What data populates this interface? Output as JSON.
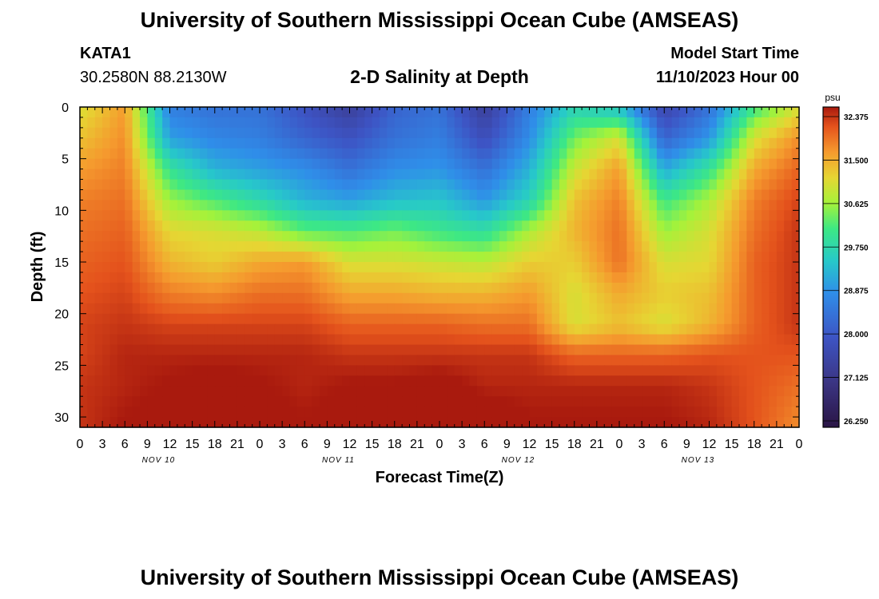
{
  "header": {
    "title": "University of Southern Mississippi Ocean Cube (AMSEAS)",
    "station_name": "KATA1",
    "station_coords": "30.2580N  88.2130W",
    "plot_title": "2-D Salinity at Depth",
    "model_label": "Model Start Time",
    "model_time": "11/10/2023 Hour 00"
  },
  "footer": {
    "title": "University of Southern Mississippi Ocean Cube (AMSEAS)"
  },
  "chart_data": {
    "type": "heatmap",
    "title": "2-D Salinity at Depth",
    "xlabel": "Forecast Time(Z)",
    "ylabel": "Depth (ft)",
    "xlim": [
      0,
      96
    ],
    "ylim": [
      0,
      31
    ],
    "y_ticks": [
      0,
      5,
      10,
      15,
      20,
      25,
      30
    ],
    "x_tick_labels": [
      "0",
      "3",
      "6",
      "9",
      "12",
      "15",
      "18",
      "21",
      "0",
      "3",
      "6",
      "9",
      "12",
      "15",
      "18",
      "21",
      "0",
      "3",
      "6",
      "9",
      "12",
      "15",
      "18",
      "21",
      "0",
      "3",
      "6",
      "9",
      "12",
      "15",
      "18",
      "21",
      "0"
    ],
    "day_labels": [
      "NOV 10",
      "NOV 11",
      "NOV 12",
      "NOV 13"
    ],
    "colorbar": {
      "unit": "psu",
      "min": 26.25,
      "max": 32.375,
      "tick_values": [
        32.375,
        31.5,
        30.625,
        29.75,
        28.875,
        28.0,
        27.125,
        26.25
      ],
      "tick_labels": [
        "32.375",
        "31.500",
        "30.625",
        "29.750",
        "28.875",
        "28.000",
        "27.125",
        "26.250"
      ]
    },
    "series_description_note": "salinity field estimated per forecast hour (columns) and depth (rows)",
    "depths_ft": [
      0,
      3,
      6,
      9,
      12,
      15,
      18,
      21,
      24,
      27,
      31
    ],
    "times_hr": [
      0,
      6,
      12,
      18,
      24,
      30,
      36,
      42,
      48,
      54,
      60,
      66,
      72,
      78,
      84,
      90,
      96
    ],
    "values": [
      [
        30.9,
        31.5,
        28.6,
        28.4,
        28.4,
        27.9,
        27.4,
        28.2,
        28.4,
        27.4,
        28.6,
        29.6,
        29.3,
        27.6,
        28.4,
        30.0,
        30.9
      ],
      [
        31.2,
        31.6,
        29.0,
        28.7,
        28.6,
        28.2,
        27.9,
        28.4,
        28.6,
        27.8,
        28.8,
        30.3,
        30.9,
        28.2,
        28.9,
        30.9,
        31.6
      ],
      [
        31.5,
        31.7,
        29.9,
        29.2,
        29.0,
        28.8,
        28.4,
        28.8,
        28.9,
        28.4,
        29.2,
        30.8,
        31.5,
        29.1,
        29.9,
        31.4,
        31.9
      ],
      [
        31.7,
        31.8,
        30.5,
        30.1,
        29.7,
        29.2,
        29.0,
        29.3,
        29.4,
        28.9,
        29.6,
        31.2,
        31.7,
        30.0,
        30.6,
        31.7,
        32.1
      ],
      [
        31.8,
        31.9,
        31.0,
        30.9,
        30.7,
        30.2,
        30.1,
        30.3,
        30.0,
        29.8,
        30.6,
        31.3,
        31.8,
        30.5,
        30.9,
        31.8,
        32.2
      ],
      [
        31.9,
        32.0,
        31.3,
        31.1,
        31.4,
        31.5,
        30.9,
        30.9,
        30.8,
        30.7,
        31.1,
        31.1,
        31.8,
        30.9,
        31.0,
        31.9,
        32.2
      ],
      [
        32.0,
        32.1,
        31.7,
        31.6,
        31.8,
        31.8,
        31.4,
        31.4,
        31.3,
        31.3,
        31.5,
        30.9,
        31.4,
        31.1,
        31.2,
        31.9,
        32.2
      ],
      [
        32.1,
        32.2,
        32.1,
        32.1,
        32.1,
        32.1,
        31.9,
        31.9,
        31.9,
        31.8,
        31.8,
        30.9,
        31.2,
        30.9,
        31.3,
        31.9,
        32.2
      ],
      [
        32.1,
        32.3,
        32.3,
        32.3,
        32.3,
        32.3,
        32.2,
        32.2,
        32.2,
        32.2,
        32.2,
        31.9,
        31.9,
        31.9,
        32.0,
        32.0,
        32.0
      ],
      [
        32.2,
        32.3,
        32.4,
        32.5,
        32.4,
        32.3,
        32.4,
        32.4,
        32.5,
        32.3,
        32.3,
        32.3,
        32.3,
        32.3,
        32.2,
        32.0,
        31.8
      ],
      [
        32.2,
        32.4,
        32.5,
        32.6,
        32.5,
        32.4,
        32.5,
        32.8,
        32.9,
        32.6,
        32.4,
        32.4,
        32.4,
        32.4,
        32.3,
        32.0,
        31.6
      ]
    ]
  }
}
